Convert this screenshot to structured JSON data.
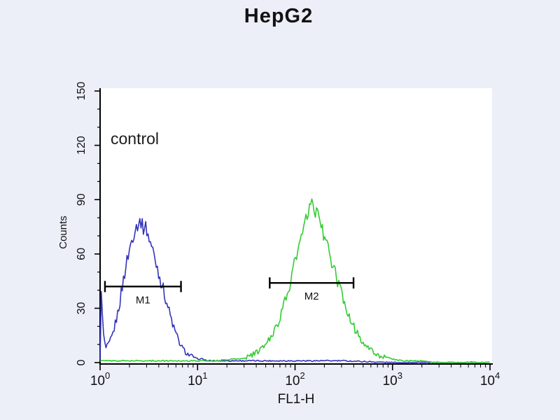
{
  "chart_data": {
    "type": "line",
    "variant": "flow-cytometry-histogram",
    "title": "HepG2",
    "xlabel": "FL1-H",
    "ylabel": "Counts",
    "x_scale": "log10",
    "xlim_exponents": [
      0,
      4
    ],
    "ylim": [
      0,
      150
    ],
    "y_ticks": [
      0,
      30,
      60,
      90,
      120,
      150
    ],
    "y_minor_step": 10,
    "x_tick_exponents": [
      0,
      1,
      2,
      3,
      4
    ],
    "grid": false,
    "legend": "none",
    "annotations": {
      "control_label": "control"
    },
    "markers": [
      {
        "label": "M1",
        "x_log_start": 0.05,
        "x_log_end": 0.83,
        "y_counts": 42
      },
      {
        "label": "M2",
        "x_log_start": 1.74,
        "x_log_end": 2.6,
        "y_counts": 44
      }
    ],
    "series": [
      {
        "name": "control",
        "color": "#3333bb",
        "points_log10x_counts": [
          [
            0.0,
            1
          ],
          [
            0.01,
            46
          ],
          [
            0.02,
            28
          ],
          [
            0.04,
            12
          ],
          [
            0.06,
            8
          ],
          [
            0.09,
            10
          ],
          [
            0.12,
            14
          ],
          [
            0.15,
            20
          ],
          [
            0.18,
            27
          ],
          [
            0.21,
            36
          ],
          [
            0.24,
            46
          ],
          [
            0.27,
            55
          ],
          [
            0.3,
            62
          ],
          [
            0.33,
            69
          ],
          [
            0.36,
            74
          ],
          [
            0.39,
            77
          ],
          [
            0.42,
            78
          ],
          [
            0.44,
            74
          ],
          [
            0.46,
            76
          ],
          [
            0.48,
            73
          ],
          [
            0.5,
            69
          ],
          [
            0.53,
            64
          ],
          [
            0.56,
            58
          ],
          [
            0.59,
            52
          ],
          [
            0.62,
            46
          ],
          [
            0.65,
            40
          ],
          [
            0.68,
            34
          ],
          [
            0.71,
            28
          ],
          [
            0.74,
            22
          ],
          [
            0.77,
            17
          ],
          [
            0.8,
            13
          ],
          [
            0.83,
            9
          ],
          [
            0.86,
            7
          ],
          [
            0.89,
            5
          ],
          [
            0.92,
            4
          ],
          [
            0.96,
            3
          ],
          [
            1.0,
            2
          ],
          [
            1.05,
            2
          ],
          [
            1.1,
            1
          ],
          [
            1.2,
            1
          ],
          [
            1.35,
            1
          ],
          [
            1.5,
            1
          ],
          [
            1.75,
            1
          ],
          [
            2.0,
            1
          ],
          [
            2.5,
            1
          ],
          [
            3.0,
            0
          ],
          [
            3.5,
            0
          ],
          [
            4.0,
            0
          ]
        ]
      },
      {
        "name": "green",
        "color": "#33cc33",
        "points_log10x_counts": [
          [
            0.0,
            1
          ],
          [
            0.4,
            1
          ],
          [
            0.8,
            1
          ],
          [
            1.0,
            1
          ],
          [
            1.2,
            1
          ],
          [
            1.35,
            2
          ],
          [
            1.45,
            2
          ],
          [
            1.55,
            4
          ],
          [
            1.62,
            6
          ],
          [
            1.68,
            9
          ],
          [
            1.74,
            13
          ],
          [
            1.8,
            19
          ],
          [
            1.85,
            26
          ],
          [
            1.9,
            34
          ],
          [
            1.95,
            44
          ],
          [
            2.0,
            56
          ],
          [
            2.05,
            66
          ],
          [
            2.1,
            76
          ],
          [
            2.14,
            83
          ],
          [
            2.17,
            88
          ],
          [
            2.2,
            85
          ],
          [
            2.24,
            80
          ],
          [
            2.28,
            74
          ],
          [
            2.32,
            66
          ],
          [
            2.36,
            58
          ],
          [
            2.4,
            51
          ],
          [
            2.44,
            44
          ],
          [
            2.48,
            37
          ],
          [
            2.52,
            31
          ],
          [
            2.56,
            25
          ],
          [
            2.6,
            20
          ],
          [
            2.65,
            15
          ],
          [
            2.7,
            11
          ],
          [
            2.75,
            8
          ],
          [
            2.8,
            6
          ],
          [
            2.85,
            4
          ],
          [
            2.92,
            3
          ],
          [
            3.0,
            2
          ],
          [
            3.1,
            1
          ],
          [
            3.25,
            1
          ],
          [
            3.5,
            0
          ],
          [
            4.0,
            0
          ]
        ]
      }
    ]
  }
}
